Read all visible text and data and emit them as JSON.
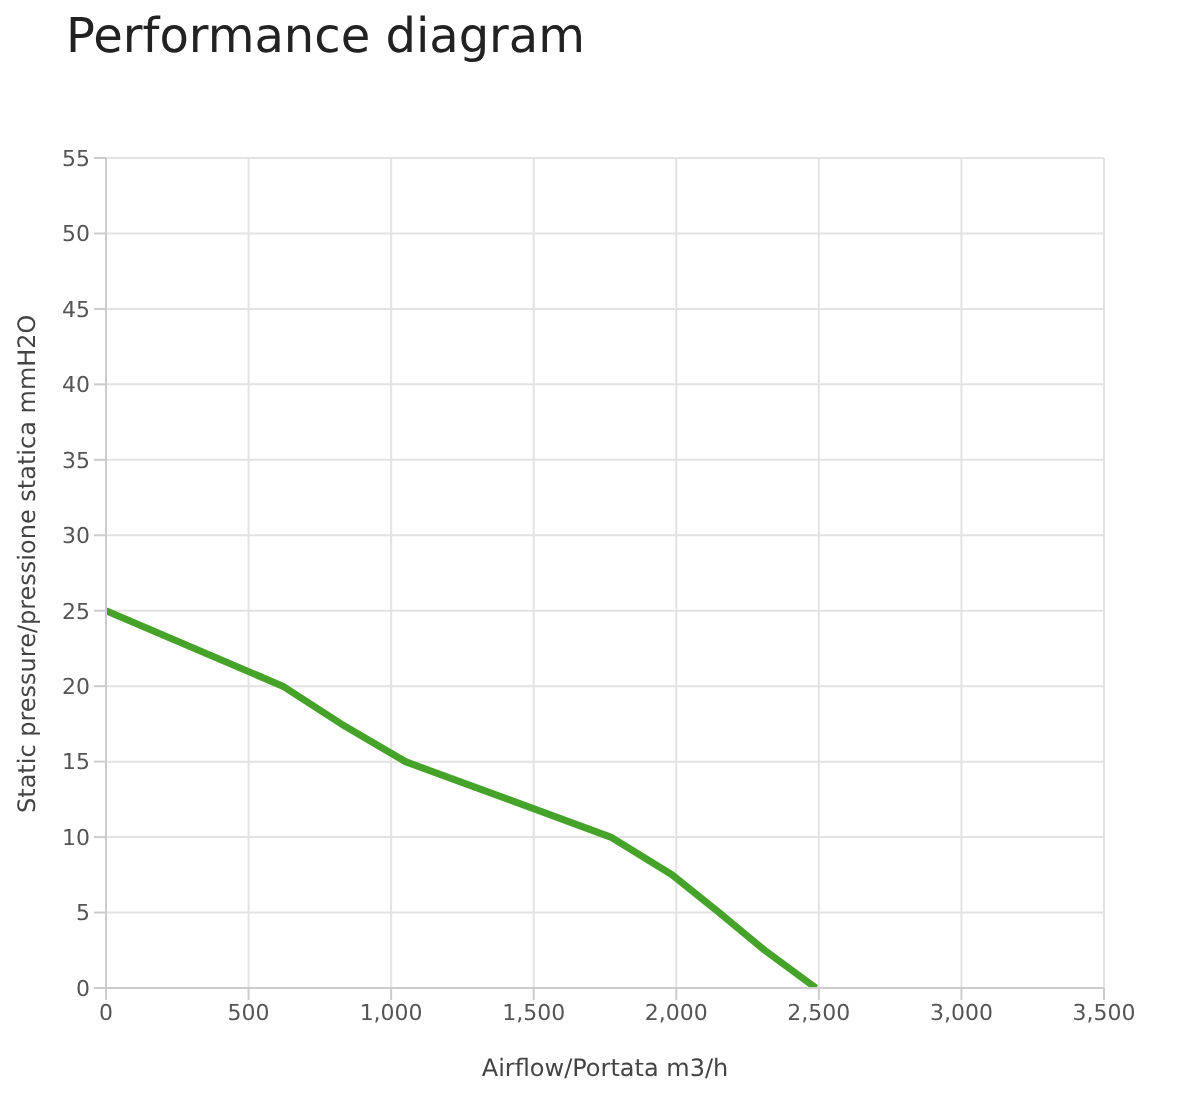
{
  "chart_data": {
    "type": "line",
    "title": "Performance diagram",
    "xlabel": "Airflow/Portata m3/h",
    "ylabel": "Static pressure/pressione statica mmH2O",
    "x": [
      0,
      620,
      825,
      1050,
      1770,
      1985,
      2150,
      2310,
      2490
    ],
    "series": [
      {
        "color": "#46a32a",
        "values": [
          25,
          20,
          17.5,
          15,
          10,
          7.5,
          5,
          2.5,
          0
        ]
      }
    ],
    "xlim": [
      0,
      3500
    ],
    "xticks": [
      0,
      500,
      {
        "value": 1000,
        "label": "1,000"
      },
      {
        "value": 1500,
        "label": "1,500"
      },
      {
        "value": 2000,
        "label": "2,000"
      },
      {
        "value": 2500,
        "label": "2,500"
      },
      {
        "value": 3000,
        "label": "3,000"
      },
      {
        "value": 3500,
        "label": "3,500"
      }
    ],
    "ylim": [
      0,
      55
    ],
    "yticks": [
      0,
      5,
      10,
      15,
      20,
      25,
      30,
      35,
      40,
      45,
      50,
      55
    ],
    "grid": true,
    "marker": "none",
    "line_style": "solid"
  }
}
